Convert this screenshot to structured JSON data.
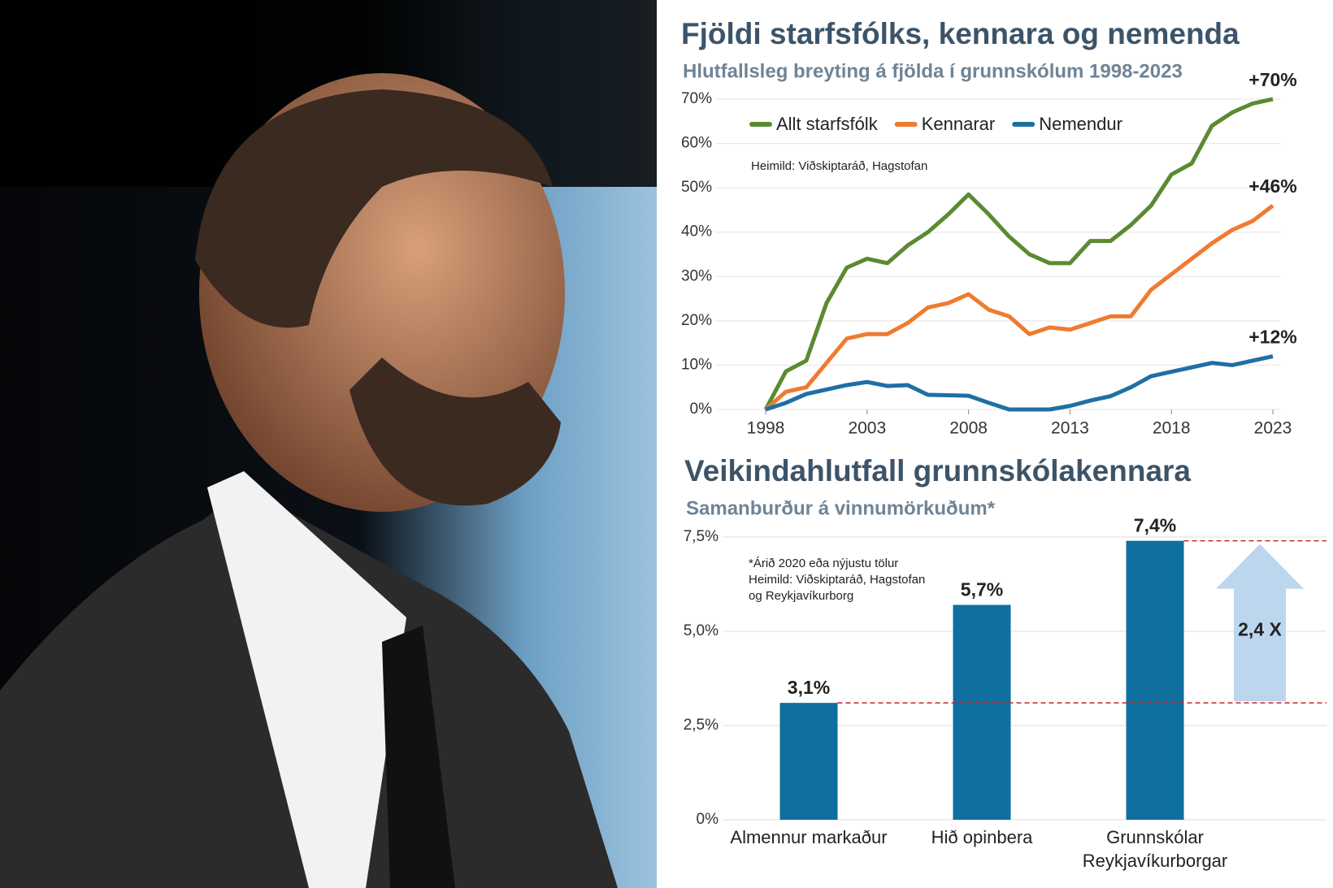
{
  "chart_data": [
    {
      "type": "line",
      "title": "Fjöldi starfsfólks, kennara og nemenda",
      "subtitle": "Hlutfallsleg breyting á fjölda í grunnskólum 1998-2023",
      "note": "Heimild: Viðskiptaráð, Hagstofan",
      "x": [
        1998,
        1999,
        2000,
        2001,
        2002,
        2003,
        2004,
        2005,
        2006,
        2007,
        2008,
        2009,
        2010,
        2011,
        2012,
        2013,
        2014,
        2015,
        2016,
        2017,
        2018,
        2019,
        2020,
        2021,
        2022,
        2023
      ],
      "xlim": [
        1998,
        2023
      ],
      "xticks": [
        1998,
        2003,
        2008,
        2013,
        2018,
        2023
      ],
      "ylim": [
        0,
        70
      ],
      "yticks": [
        {
          "value": 0,
          "label": "0%"
        },
        {
          "value": 10,
          "label": "10%"
        },
        {
          "value": 20,
          "label": "20%"
        },
        {
          "value": 30,
          "label": "30%"
        },
        {
          "value": 40,
          "label": "40%"
        },
        {
          "value": 50,
          "label": "50%"
        },
        {
          "value": 60,
          "label": "60%"
        },
        {
          "value": 70,
          "label": "70%"
        }
      ],
      "grid": true,
      "series": [
        {
          "name": "Allt starfsfólk",
          "color": "#5b8a32",
          "values": [
            0,
            8.6,
            11,
            24,
            32,
            34,
            33,
            37,
            40,
            44,
            48.5,
            44,
            39,
            35,
            33,
            33,
            38,
            38,
            41.6,
            46,
            53,
            55.5,
            64,
            67,
            69,
            70
          ]
        },
        {
          "name": "Kennarar",
          "color": "#ef7b2f",
          "values": [
            0,
            4,
            5,
            10.5,
            16,
            17,
            17,
            19.5,
            23,
            24,
            26,
            22.5,
            21,
            17,
            18.5,
            18,
            19.5,
            21,
            21,
            27,
            30.5,
            34,
            37.5,
            40.5,
            42.5,
            46
          ]
        },
        {
          "name": "Nemendur",
          "color": "#1f6fa3",
          "values": [
            0,
            1.5,
            3.5,
            4.5,
            5.5,
            6.2,
            5.3,
            5.5,
            3.3,
            3.2,
            3.1,
            1.5,
            0,
            0,
            0,
            0.8,
            2,
            3,
            5,
            7.5,
            8.5,
            9.5,
            10.5,
            10,
            11,
            12
          ]
        }
      ],
      "annotations": [
        {
          "text": "+70%",
          "x": 2023,
          "y": 70
        },
        {
          "text": "+46%",
          "x": 2023,
          "y": 46
        },
        {
          "text": "+12%",
          "x": 2023,
          "y": 12
        }
      ]
    },
    {
      "type": "bar",
      "title": "Veikindahlutfall grunnskólakennara",
      "subtitle": "Samanburður á vinnumörkuðum*",
      "notes": [
        "*Árið 2020 eða nýjustu tölur",
        "Heimild: Viðskiptaráð, Hagstofan",
        "og Reykjavíkurborg"
      ],
      "categories": [
        "Almennur markaður",
        "Hið opinbera",
        "Grunnskólar Reykjavíkurborgar"
      ],
      "values": [
        3.1,
        5.7,
        7.4
      ],
      "value_labels": [
        "3,1%",
        "5,7%",
        "7,4%"
      ],
      "color": "#0f6f9f",
      "ylim": [
        0,
        7.5
      ],
      "yticks": [
        {
          "value": 0,
          "label": "0%"
        },
        {
          "value": 2.5,
          "label": "2,5%"
        },
        {
          "value": 5,
          "label": "5,0%"
        },
        {
          "value": 7.5,
          "label": "7,5%"
        }
      ],
      "grid": true,
      "arrow_label": "2,4 X"
    }
  ]
}
